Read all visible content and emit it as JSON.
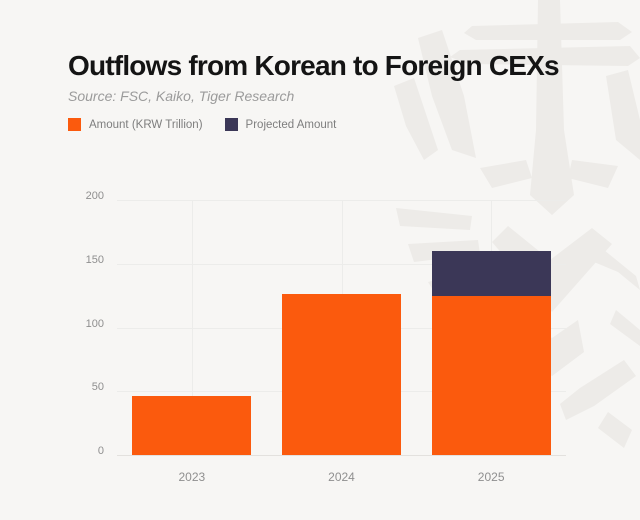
{
  "page": {
    "background": "#f7f6f4"
  },
  "header": {
    "title": "Outflows from Korean to Foreign CEXs",
    "source": "Source: FSC, Kaiko, Tiger Research"
  },
  "legend": {
    "items": [
      {
        "label": "Amount (KRW Trillion)",
        "color": "#fb5a0d"
      },
      {
        "label": "Projected Amount",
        "color": "#3b3757"
      }
    ]
  },
  "chart_data": {
    "type": "bar",
    "stacked": true,
    "title": "Outflows from Korean to Foreign CEXs",
    "categories": [
      "2023",
      "2024",
      "2025"
    ],
    "series": [
      {
        "name": "Amount (KRW Trillion)",
        "color": "#fb5a0d",
        "values": [
          46,
          126,
          125
        ]
      },
      {
        "name": "Projected Amount",
        "color": "#3b3757",
        "values": [
          0,
          0,
          35
        ]
      }
    ],
    "xlabel": "",
    "ylabel": "",
    "ylim": [
      0,
      200
    ],
    "y_ticks": [
      0,
      50,
      100,
      150,
      200
    ],
    "grid": true,
    "legend_position": "top-left"
  },
  "colors": {
    "background": "#f7f6f4",
    "title": "#141414",
    "subtitle": "#9b9b9b",
    "legend_text": "#7e7e7e",
    "axis_text": "#8f8f8f",
    "gridline": "#ececea",
    "baseline": "#e3e1de",
    "amount": "#fb5a0d",
    "projected": "#3b3757",
    "watermark": "#edebe8"
  }
}
